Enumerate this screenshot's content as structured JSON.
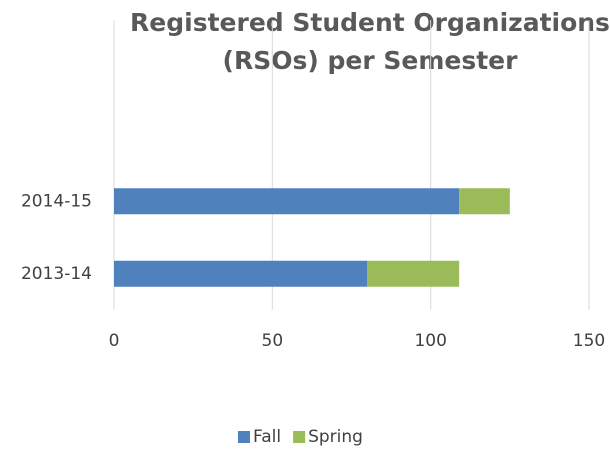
{
  "chart_data": {
    "type": "stacked_barh",
    "title": "Registered Student Organizations (RSOs) per Semester",
    "categories": [
      "2013-14",
      "2014-15"
    ],
    "series": [
      {
        "name": "Fall",
        "color": "#4f81bd",
        "values": [
          80,
          109
        ]
      },
      {
        "name": "Spring",
        "color": "#9bbb59",
        "values": [
          29,
          16
        ]
      }
    ],
    "xlim": [
      0,
      150
    ],
    "xticks": [
      0,
      50,
      100,
      150
    ],
    "grid": true,
    "legend": "bottom"
  }
}
